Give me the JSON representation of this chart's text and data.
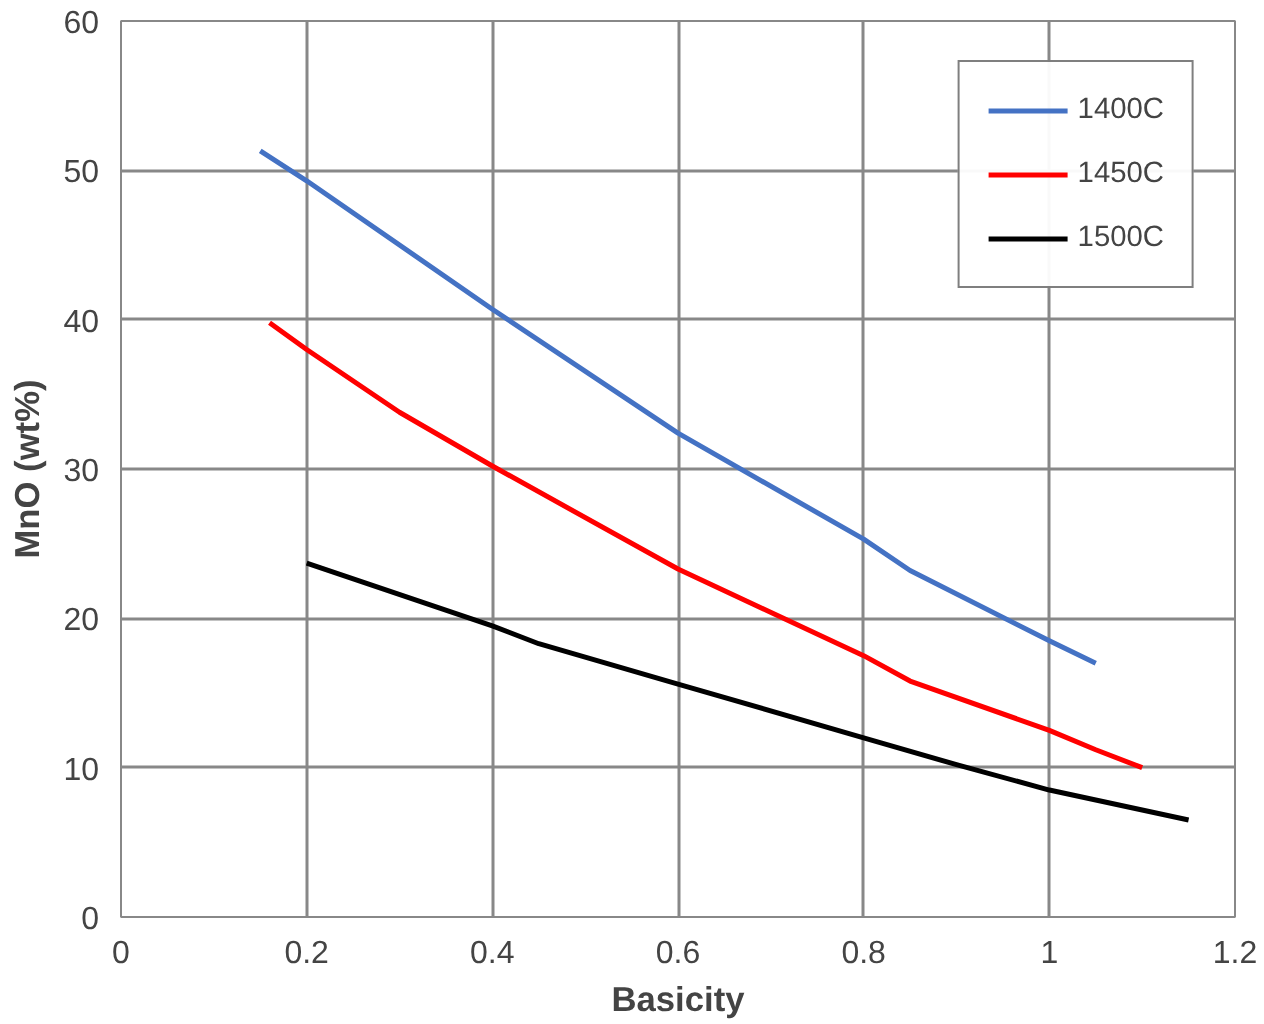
{
  "chart_data": {
    "type": "line",
    "xlabel": "Basicity",
    "ylabel": "MnO (wt%)",
    "xlim": [
      0,
      1.2
    ],
    "ylim": [
      0,
      60
    ],
    "xticks": [
      0,
      0.2,
      0.4,
      0.6,
      0.8,
      1,
      1.2
    ],
    "yticks": [
      0,
      10,
      20,
      30,
      40,
      50,
      60
    ],
    "grid": true,
    "legend": "top right",
    "marker": "none",
    "line_style": "solid",
    "series": [
      {
        "name": "1400C",
        "color": "#4472c4",
        "x": [
          0.15,
          0.2,
          0.4,
          0.6,
          0.8,
          0.85,
          1.0,
          1.05
        ],
        "values": [
          51.3,
          49.3,
          40.7,
          32.4,
          25.3,
          23.2,
          18.5,
          17
        ]
      },
      {
        "name": "1450C",
        "color": "#ff0000",
        "x": [
          0.16,
          0.2,
          0.3,
          0.4,
          0.6,
          0.8,
          0.85,
          1.0,
          1.05,
          1.1
        ],
        "values": [
          39.8,
          38,
          33.8,
          30.2,
          23.3,
          17.5,
          15.8,
          12.5,
          11.2,
          10
        ]
      },
      {
        "name": "1500C",
        "color": "#000000",
        "x": [
          0.2,
          0.4,
          0.45,
          0.6,
          0.8,
          0.9,
          1.0,
          1.15
        ],
        "values": [
          23.7,
          19.5,
          18.3,
          15.6,
          12,
          10.2,
          8.5,
          6.5
        ]
      }
    ]
  }
}
